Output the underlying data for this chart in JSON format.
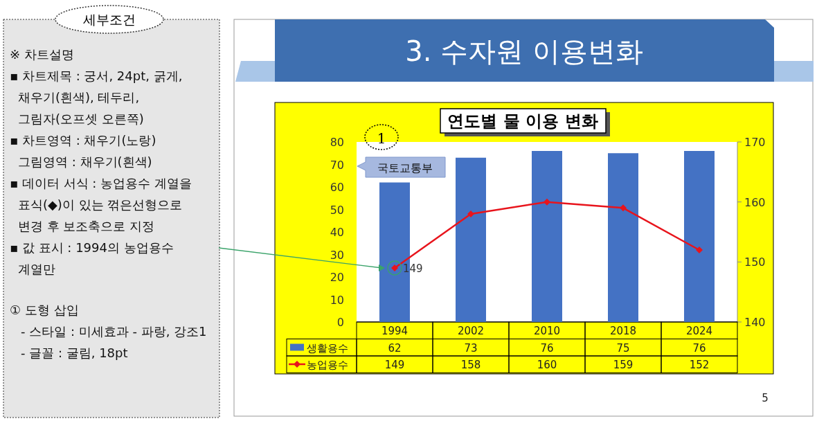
{
  "chart_data": {
    "type": "bar",
    "title": "연도별 물 이용 변화",
    "subtitle": "3. 수자원 이용변화",
    "categories": [
      "1994",
      "2002",
      "2010",
      "2018",
      "2024"
    ],
    "series": [
      {
        "name": "생활용수",
        "color": "#4472c4",
        "values": [
          62,
          73,
          76,
          75,
          76
        ]
      },
      {
        "name": "농업용수",
        "type": "line",
        "axis": "y2",
        "color": "#e8141c",
        "marker": "diamond",
        "values": [
          149,
          158,
          160,
          159,
          152
        ]
      }
    ],
    "ylim": [
      0,
      80
    ],
    "yticks": [
      0,
      10,
      20,
      30,
      40,
      50,
      60,
      70,
      80
    ],
    "y2lim": [
      140,
      170
    ],
    "y2ticks": [
      140,
      150,
      160,
      170
    ],
    "data_labels": true,
    "legend": "bottom",
    "annotations": [
      "세부조건",
      "※ 차트설명",
      "▪ 차트제목 : 궁서, 24pt, 굵게, 채우기(흰색), 테두리, 그림자(오프셋 오른쪽)",
      "▪ 차트영역 : 채우기(노랑)",
      "그림영역 : 채우기(흰색)",
      "▪ 데이터 서식 : 농업용수 계열을 표식(◆)이 있는 꺾은선형으로 변경 후 보조축으로 지정",
      "▪ 값 표시 : 1994의 농업용수 계열만",
      "① 도형 삽입",
      "- 스타일 : 미세효과 - 파랑, 강조1",
      "- 글꼴 : 굴림, 18pt",
      "149",
      "1",
      "국토교통부",
      "5"
    ]
  }
}
